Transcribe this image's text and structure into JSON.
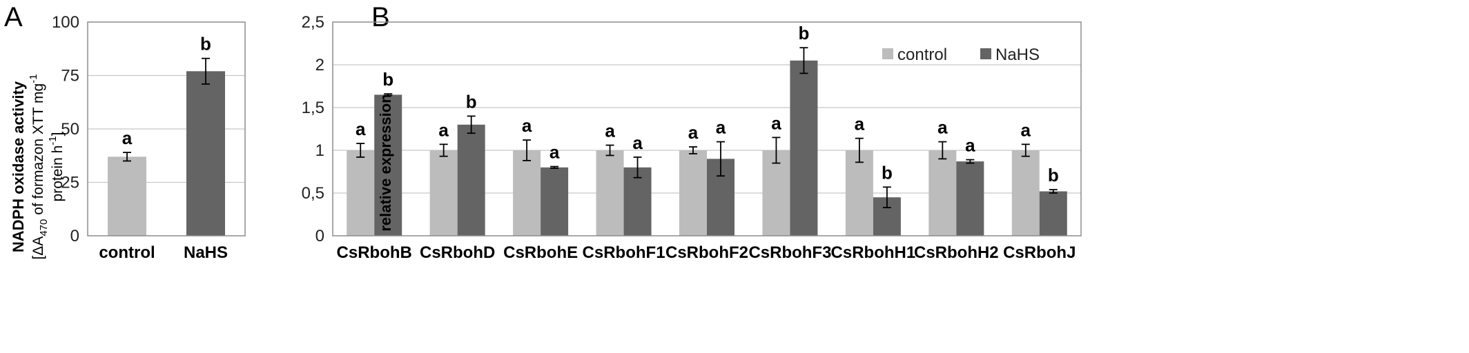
{
  "panels": {
    "a": {
      "letter": "A"
    },
    "b": {
      "letter": "B"
    }
  },
  "chart_data": [
    {
      "type": "bar",
      "categories": [
        "control",
        "NaHS"
      ],
      "values": [
        37,
        77
      ],
      "errors": [
        2,
        6
      ],
      "significance": [
        "a",
        "b"
      ],
      "colors": [
        "#bcbcbc",
        "#646464"
      ],
      "ylabel_line1": "NADPH oxidase activity",
      "ylabel_line2_pre": "[ΔA",
      "ylabel_line2_sub": "470",
      "ylabel_line2_post": " of formazon XTT mg",
      "ylabel_line2_sup": "-1",
      "ylabel_line3_pre": "protein h",
      "ylabel_line3_sup": "-1",
      "ylabel_line3_post": "]",
      "ylim": [
        0,
        100
      ],
      "yticks": [
        "0",
        "25",
        "50",
        "75",
        "100"
      ],
      "grid": true
    },
    {
      "type": "bar",
      "categories": [
        "CsRbohB",
        "CsRbohD",
        "CsRbohE",
        "CsRbohF1",
        "CsRbohF2",
        "CsRbohF3",
        "CsRbohH1",
        "CsRbohH2",
        "CsRbohJ"
      ],
      "series": [
        {
          "name": "control",
          "color": "#bcbcbc",
          "values": [
            1,
            1,
            1,
            1,
            1,
            1,
            1,
            1,
            1
          ],
          "errors": [
            0.08,
            0.07,
            0.12,
            0.06,
            0.04,
            0.15,
            0.14,
            0.1,
            0.07
          ],
          "significance": [
            "a",
            "a",
            "a",
            "a",
            "a",
            "a",
            "a",
            "a",
            "a"
          ]
        },
        {
          "name": "NaHS",
          "color": "#646464",
          "values": [
            1.65,
            1.3,
            0.8,
            0.8,
            0.9,
            2.05,
            0.45,
            0.87,
            0.52
          ],
          "errors": [
            0.01,
            0.1,
            0.01,
            0.12,
            0.2,
            0.15,
            0.12,
            0.02,
            0.02
          ],
          "significance": [
            "b",
            "b",
            "a",
            "a",
            "a",
            "b",
            "b",
            "a",
            "b"
          ]
        }
      ],
      "ylabel": "relative expression",
      "ylim": [
        0,
        2.5
      ],
      "yticks": [
        "0",
        "0,5",
        "1",
        "1,5",
        "2",
        "2,5"
      ],
      "legend_position": "top-center",
      "grid": true
    }
  ]
}
